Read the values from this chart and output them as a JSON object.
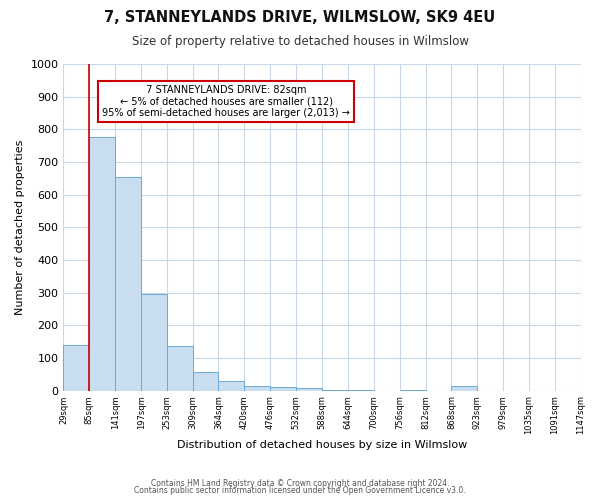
{
  "title": "7, STANNEYLANDS DRIVE, WILMSLOW, SK9 4EU",
  "subtitle": "Size of property relative to detached houses in Wilmslow",
  "xlabel": "Distribution of detached houses by size in Wilmslow",
  "ylabel": "Number of detached properties",
  "bar_values_full": [
    140,
    775,
    655,
    295,
    135,
    57,
    30,
    15,
    10,
    8,
    2,
    1,
    0,
    1,
    0,
    13,
    0,
    0,
    0,
    0
  ],
  "bin_edges": [
    29,
    85,
    141,
    197,
    253,
    309,
    364,
    420,
    476,
    532,
    588,
    644,
    700,
    756,
    812,
    868,
    923,
    979,
    1035,
    1091,
    1147
  ],
  "bin_labels": [
    "29sqm",
    "85sqm",
    "141sqm",
    "197sqm",
    "253sqm",
    "309sqm",
    "364sqm",
    "420sqm",
    "476sqm",
    "532sqm",
    "588sqm",
    "644sqm",
    "700sqm",
    "756sqm",
    "812sqm",
    "868sqm",
    "923sqm",
    "979sqm",
    "1035sqm",
    "1091sqm",
    "1147sqm"
  ],
  "bar_color": "#c9ddf0",
  "bar_edge_color": "#6aaad4",
  "reference_line_x": 85,
  "reference_line_color": "#cc0000",
  "ylim": [
    0,
    1000
  ],
  "yticks": [
    0,
    100,
    200,
    300,
    400,
    500,
    600,
    700,
    800,
    900,
    1000
  ],
  "annotation_title": "7 STANNEYLANDS DRIVE: 82sqm",
  "annotation_line1": "← 5% of detached houses are smaller (112)",
  "annotation_line2": "95% of semi-detached houses are larger (2,013) →",
  "annotation_box_color": "#ffffff",
  "annotation_box_edge": "#cc0000",
  "footer1": "Contains HM Land Registry data © Crown copyright and database right 2024.",
  "footer2": "Contains public sector information licensed under the Open Government Licence v3.0."
}
